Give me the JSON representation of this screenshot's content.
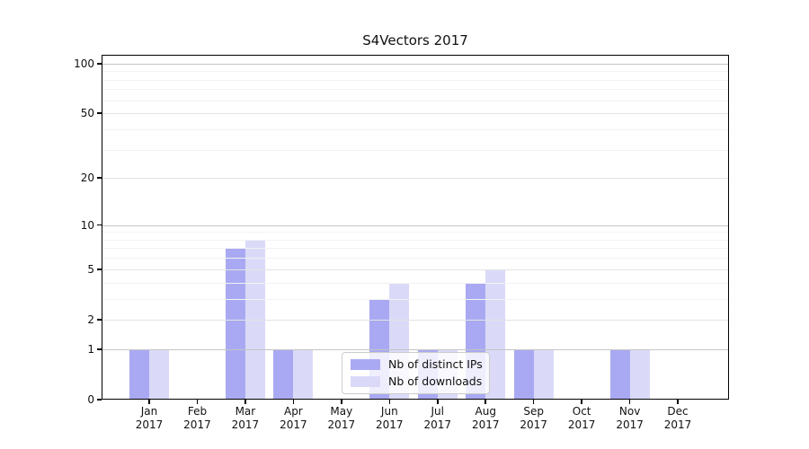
{
  "chart_data": {
    "type": "bar",
    "title": "S4Vectors 2017",
    "categories": [
      {
        "month": "Jan",
        "year": "2017"
      },
      {
        "month": "Feb",
        "year": "2017"
      },
      {
        "month": "Mar",
        "year": "2017"
      },
      {
        "month": "Apr",
        "year": "2017"
      },
      {
        "month": "May",
        "year": "2017"
      },
      {
        "month": "Jun",
        "year": "2017"
      },
      {
        "month": "Jul",
        "year": "2017"
      },
      {
        "month": "Aug",
        "year": "2017"
      },
      {
        "month": "Sep",
        "year": "2017"
      },
      {
        "month": "Oct",
        "year": "2017"
      },
      {
        "month": "Nov",
        "year": "2017"
      },
      {
        "month": "Dec",
        "year": "2017"
      }
    ],
    "series": [
      {
        "name": "Nb of distinct IPs",
        "color": "#a9a9f3",
        "values": [
          1,
          0,
          7,
          1,
          0,
          3,
          1,
          4,
          1,
          0,
          1,
          0
        ]
      },
      {
        "name": "Nb of downloads",
        "color": "#dadaf8",
        "values": [
          1,
          0,
          8,
          1,
          0,
          4,
          1,
          5,
          1,
          0,
          1,
          0
        ]
      }
    ],
    "y_axis": {
      "scale": "log10(1+x)",
      "tick_values": [
        0,
        1,
        2,
        5,
        10,
        20,
        50,
        100
      ],
      "tick_labels": [
        "0",
        "1",
        "2",
        "5",
        "10",
        "20",
        "50",
        "100"
      ],
      "emphasized_gridlines": [
        1,
        10,
        100
      ],
      "minor_gridlines": [
        3,
        4,
        6,
        7,
        8,
        9,
        30,
        40,
        60,
        70,
        80,
        90
      ],
      "ylim": [
        0,
        112
      ]
    },
    "xlabel": "",
    "ylabel": "",
    "legend": {
      "position": "inside-bottom-center",
      "entries": [
        "Nb of distinct IPs",
        "Nb of downloads"
      ]
    },
    "grid": true
  }
}
